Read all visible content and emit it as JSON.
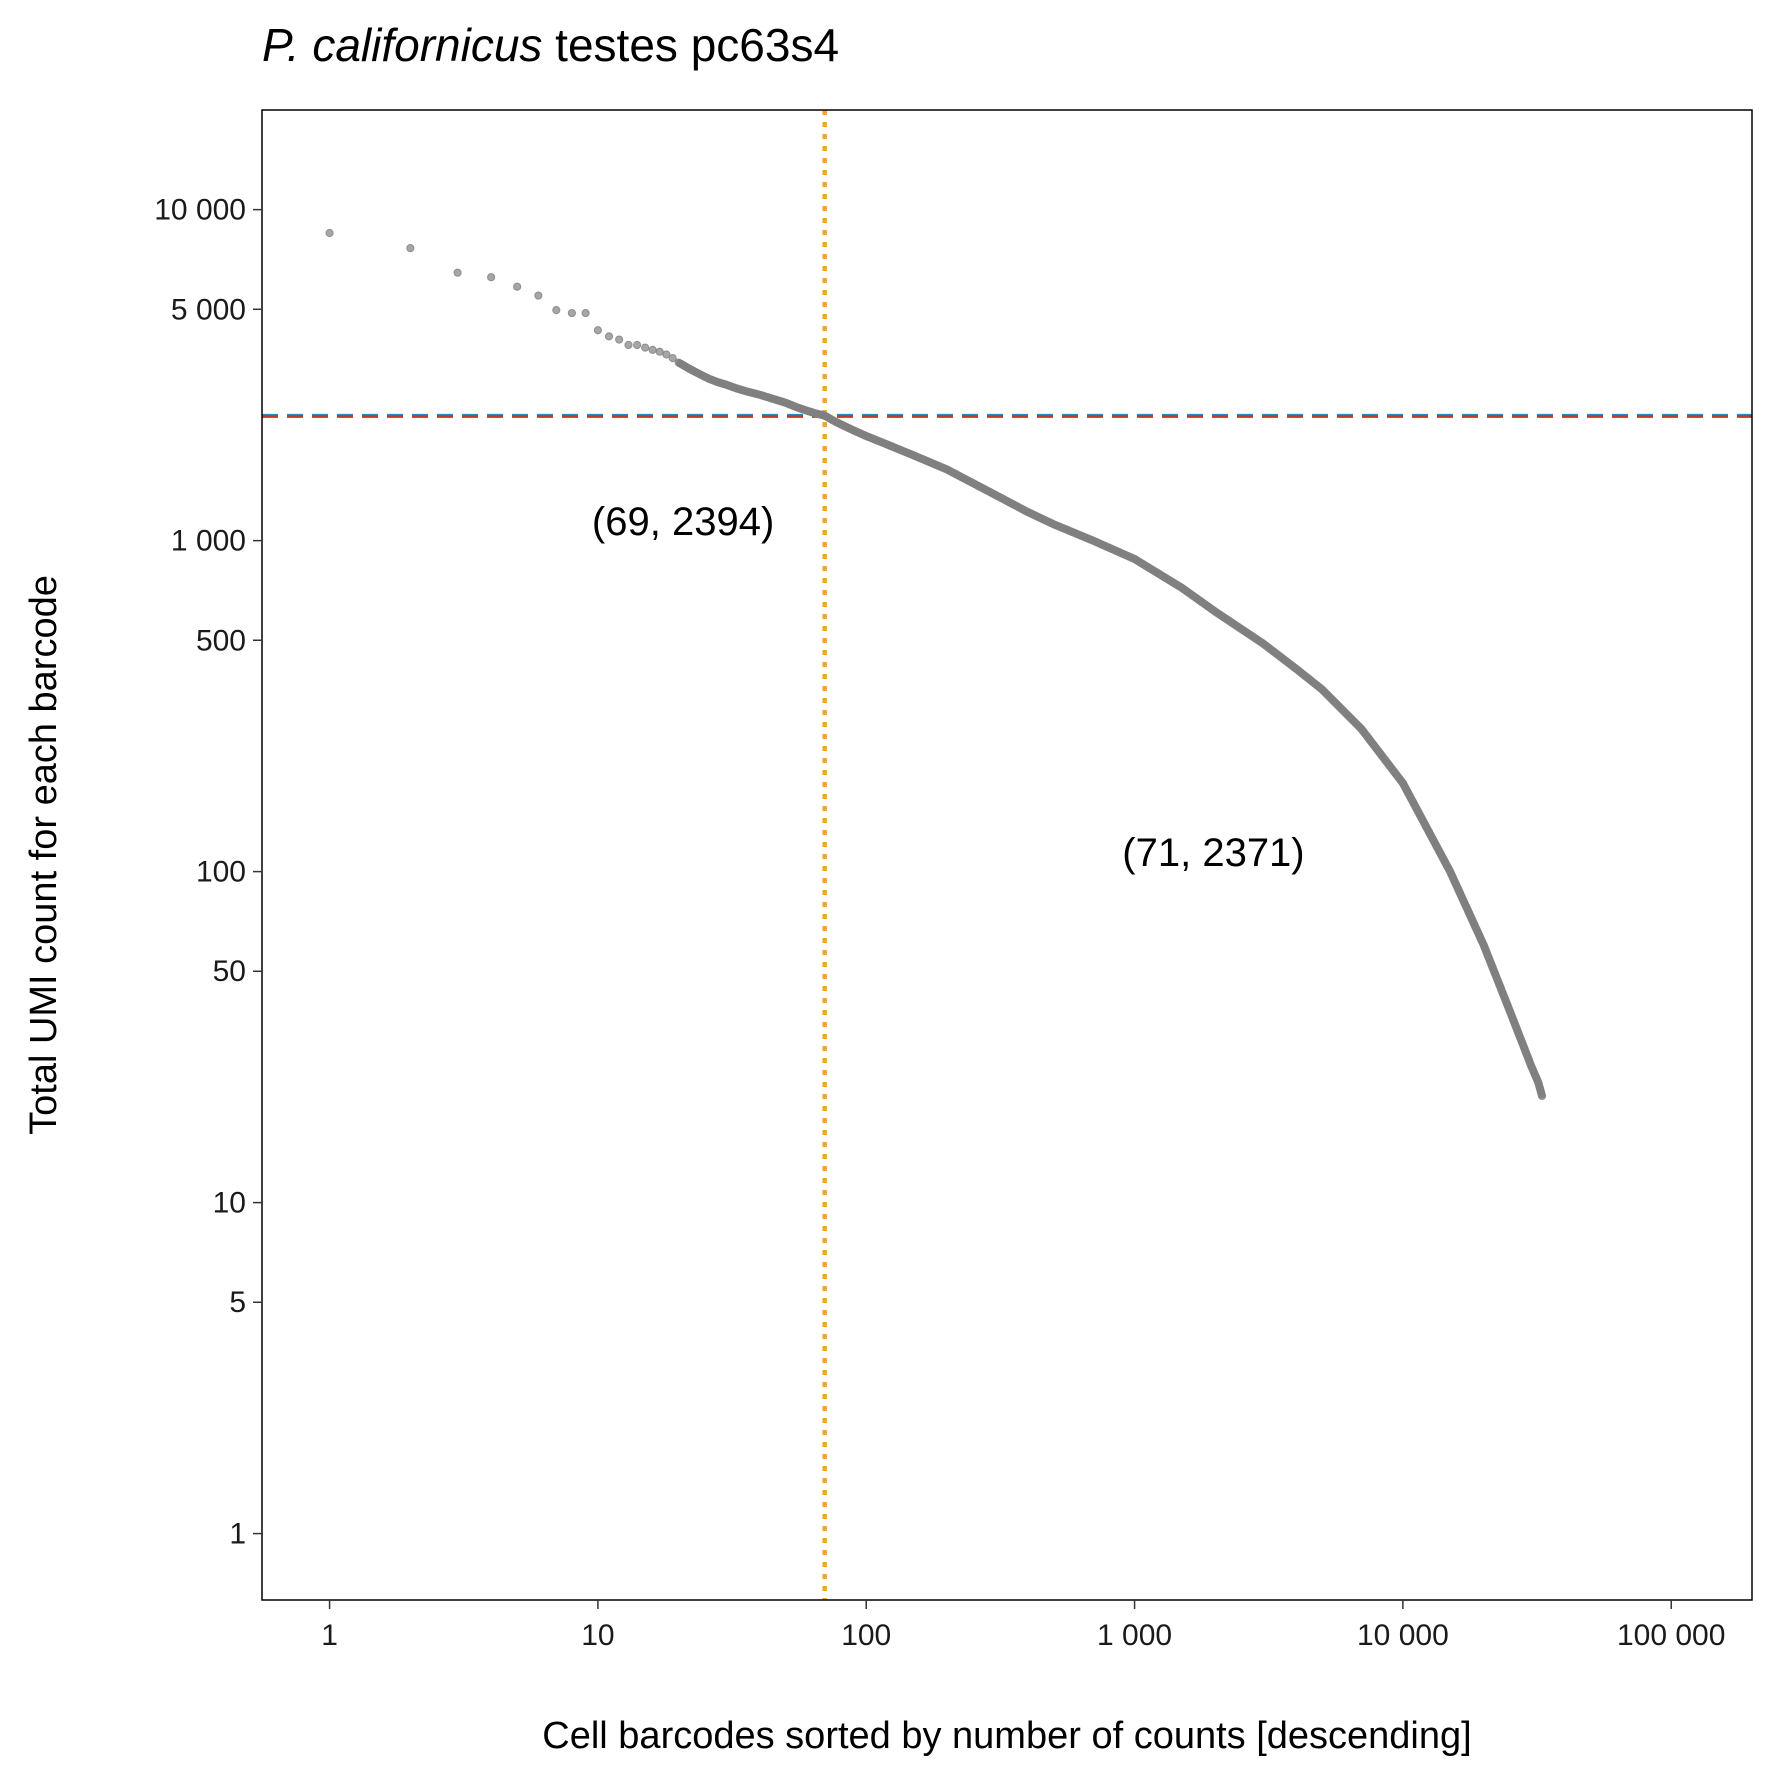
{
  "chart_data": {
    "type": "scatter",
    "title_italic": "P. californicus",
    "title_rest": " testes pc63s4",
    "xlabel": "Cell barcodes sorted by number of counts [descending]",
    "ylabel": "Total UMI count for each barcode",
    "x_scale": "log10",
    "y_scale": "log10",
    "xlim": [
      0.56,
      200000
    ],
    "ylim": [
      0.63,
      20000
    ],
    "x_ticks": [
      {
        "value": 1,
        "label": "1"
      },
      {
        "value": 10,
        "label": "10"
      },
      {
        "value": 100,
        "label": "100"
      },
      {
        "value": 1000,
        "label": "1 000"
      },
      {
        "value": 10000,
        "label": "10 000"
      },
      {
        "value": 100000,
        "label": "100 000"
      }
    ],
    "y_ticks": [
      {
        "value": 1,
        "label": "1"
      },
      {
        "value": 5,
        "label": "5"
      },
      {
        "value": 10,
        "label": "10"
      },
      {
        "value": 50,
        "label": "50"
      },
      {
        "value": 100,
        "label": "100"
      },
      {
        "value": 500,
        "label": "500"
      },
      {
        "value": 1000,
        "label": "1 000"
      },
      {
        "value": 5000,
        "label": "5 000"
      },
      {
        "value": 10000,
        "label": "10 000"
      }
    ],
    "grid": false,
    "point_color": "#808080",
    "points": [
      [
        1,
        8500
      ],
      [
        2,
        7650
      ],
      [
        3,
        6450
      ],
      [
        4,
        6250
      ],
      [
        5,
        5850
      ],
      [
        6,
        5500
      ],
      [
        7,
        4970
      ],
      [
        8,
        4870
      ],
      [
        9,
        4870
      ],
      [
        10,
        4320
      ],
      [
        11,
        4140
      ],
      [
        12,
        4050
      ],
      [
        13,
        3900
      ],
      [
        14,
        3900
      ],
      [
        15,
        3830
      ],
      [
        16,
        3770
      ],
      [
        17,
        3720
      ],
      [
        18,
        3650
      ],
      [
        19,
        3560
      ],
      [
        20,
        3450
      ],
      [
        22,
        3300
      ],
      [
        24,
        3180
      ],
      [
        26,
        3080
      ],
      [
        28,
        3010
      ],
      [
        30,
        2960
      ],
      [
        33,
        2880
      ],
      [
        36,
        2820
      ],
      [
        40,
        2760
      ],
      [
        45,
        2680
      ],
      [
        50,
        2610
      ],
      [
        55,
        2530
      ],
      [
        60,
        2470
      ],
      [
        65,
        2420
      ],
      [
        69,
        2394
      ],
      [
        71,
        2371
      ],
      [
        75,
        2310
      ],
      [
        80,
        2250
      ],
      [
        90,
        2150
      ],
      [
        100,
        2070
      ],
      [
        120,
        1950
      ],
      [
        150,
        1810
      ],
      [
        200,
        1640
      ],
      [
        300,
        1380
      ],
      [
        400,
        1220
      ],
      [
        500,
        1120
      ],
      [
        700,
        1000
      ],
      [
        1000,
        880
      ],
      [
        1500,
        720
      ],
      [
        2000,
        610
      ],
      [
        3000,
        490
      ],
      [
        4000,
        410
      ],
      [
        5000,
        355
      ],
      [
        7000,
        270
      ],
      [
        10000,
        185
      ],
      [
        15000,
        100
      ],
      [
        20000,
        60
      ],
      [
        25000,
        38
      ],
      [
        30000,
        26
      ],
      [
        32000,
        23
      ],
      [
        33000,
        21
      ]
    ],
    "reference_lines": {
      "vertical_x": 70,
      "vertical_color": "#F5A623",
      "horizontal_values": [
        2394,
        2371
      ],
      "horizontal_colors": [
        "#2E86C1",
        "#C0392B"
      ]
    },
    "annotations": [
      {
        "text": "(69, 2394)",
        "x": 9.5,
        "y": 1040
      },
      {
        "text": "(71, 2371)",
        "x": 900,
        "y": 104
      }
    ]
  }
}
